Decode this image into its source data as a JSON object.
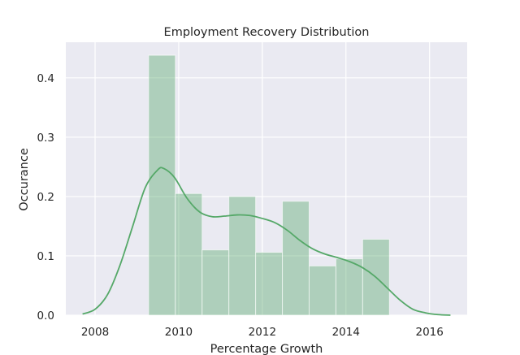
{
  "chart_data": {
    "type": "bar",
    "title": "Employment Recovery Distribution",
    "xlabel": "Percentage Growth",
    "ylabel": "Occurance",
    "xlim": [
      2007.3,
      2016.9
    ],
    "ylim": [
      0,
      0.46
    ],
    "xticks": [
      2008,
      2010,
      2012,
      2014,
      2016
    ],
    "yticks": [
      0.0,
      0.1,
      0.2,
      0.3,
      0.4
    ],
    "xtick_labels": [
      "2008",
      "2010",
      "2012",
      "2014",
      "2016"
    ],
    "ytick_labels": [
      "0.0",
      "0.1",
      "0.2",
      "0.3",
      "0.4"
    ],
    "grid": true,
    "legend": "none",
    "colors": {
      "background": "#eaeaf2",
      "grid": "#ffffff",
      "bar_fill": "#55a868",
      "bar_opacity": 0.4,
      "kde_line": "#55a868"
    },
    "histogram": {
      "bin_edges": [
        2009.28,
        2009.92,
        2010.56,
        2011.2,
        2011.84,
        2012.48,
        2013.12,
        2013.76,
        2014.4,
        2015.04
      ],
      "values": [
        0.438,
        0.205,
        0.11,
        0.2,
        0.106,
        0.192,
        0.083,
        0.095,
        0.128
      ]
    },
    "kde": {
      "x": [
        2007.7,
        2008.0,
        2008.3,
        2008.6,
        2008.9,
        2009.2,
        2009.5,
        2009.65,
        2009.9,
        2010.2,
        2010.5,
        2010.8,
        2011.1,
        2011.4,
        2011.7,
        2012.0,
        2012.3,
        2012.6,
        2012.9,
        2013.2,
        2013.5,
        2013.8,
        2014.1,
        2014.4,
        2014.7,
        2015.0,
        2015.3,
        2015.6,
        2015.9,
        2016.2,
        2016.5
      ],
      "y": [
        0.002,
        0.01,
        0.035,
        0.085,
        0.15,
        0.215,
        0.245,
        0.247,
        0.232,
        0.197,
        0.174,
        0.166,
        0.167,
        0.169,
        0.168,
        0.163,
        0.156,
        0.143,
        0.126,
        0.112,
        0.103,
        0.097,
        0.09,
        0.08,
        0.065,
        0.045,
        0.025,
        0.01,
        0.004,
        0.001,
        0.0
      ]
    }
  }
}
